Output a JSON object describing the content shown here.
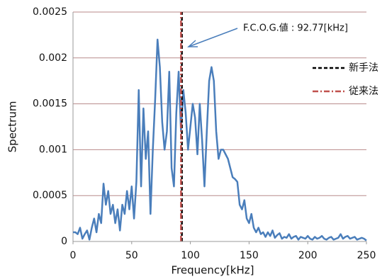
{
  "chart_data": {
    "type": "line",
    "xlabel": "Frequency[kHz]",
    "ylabel": "Spectrum",
    "annotation": "F.C.O.G.値 : 92.77[kHz]",
    "x": [
      0,
      2,
      4,
      6,
      8,
      10,
      12,
      14,
      16,
      18,
      20,
      22,
      24,
      26,
      28,
      30,
      32,
      34,
      36,
      38,
      40,
      42,
      44,
      46,
      48,
      50,
      52,
      54,
      56,
      58,
      60,
      62,
      64,
      66,
      68,
      70,
      72,
      74,
      76,
      78,
      80,
      82,
      84,
      86,
      88,
      90,
      92,
      94,
      96,
      98,
      100,
      102,
      104,
      106,
      108,
      110,
      112,
      114,
      116,
      118,
      120,
      122,
      124,
      126,
      128,
      130,
      132,
      134,
      136,
      138,
      140,
      142,
      144,
      146,
      148,
      150,
      152,
      154,
      156,
      158,
      160,
      162,
      164,
      166,
      168,
      170,
      172,
      174,
      176,
      178,
      180,
      182,
      184,
      186,
      188,
      190,
      192,
      194,
      196,
      198,
      200,
      202,
      204,
      206,
      208,
      210,
      212,
      214,
      216,
      218,
      220,
      222,
      224,
      226,
      228,
      230,
      232,
      234,
      236,
      238,
      240,
      242,
      244,
      246,
      248,
      250
    ],
    "series": [
      {
        "color": "#4a7ebb",
        "values": [
          0.0001,
          0.0001,
          8e-05,
          0.00015,
          3e-05,
          8e-05,
          0.00012,
          2e-05,
          0.00015,
          0.00025,
          0.0001,
          0.0003,
          0.0002,
          0.00063,
          0.0004,
          0.00055,
          0.0003,
          0.0004,
          0.0002,
          0.00035,
          0.00012,
          0.0004,
          0.0003,
          0.00055,
          0.00035,
          0.0006,
          0.00025,
          0.00065,
          0.00165,
          0.0006,
          0.00145,
          0.0009,
          0.0012,
          0.0003,
          0.001,
          0.00155,
          0.0022,
          0.0019,
          0.0013,
          0.001,
          0.0012,
          0.00185,
          0.0008,
          0.0006,
          0.0014,
          0.00185,
          0.0012,
          0.00165,
          0.0014,
          0.001,
          0.00125,
          0.0015,
          0.00135,
          0.00095,
          0.0015,
          0.0011,
          0.0006,
          0.0012,
          0.00175,
          0.0019,
          0.00175,
          0.0012,
          0.0009,
          0.001,
          0.001,
          0.00095,
          0.0009,
          0.0008,
          0.0007,
          0.00068,
          0.00065,
          0.0004,
          0.00035,
          0.00045,
          0.00025,
          0.0002,
          0.0003,
          0.00015,
          0.0001,
          0.00015,
          8e-05,
          0.0001,
          5e-05,
          0.0001,
          6e-05,
          0.00012,
          4e-05,
          7e-05,
          9e-05,
          3e-05,
          5e-05,
          4e-05,
          8e-05,
          3e-05,
          5e-05,
          6e-05,
          2e-05,
          5e-05,
          4e-05,
          3e-05,
          6e-05,
          3e-05,
          2e-05,
          5e-05,
          3e-05,
          4e-05,
          6e-05,
          3e-05,
          2e-05,
          4e-05,
          5e-05,
          2e-05,
          3e-05,
          4e-05,
          8e-05,
          3e-05,
          5e-05,
          6e-05,
          3e-05,
          4e-05,
          5e-05,
          2e-05,
          3e-05,
          4e-05,
          3e-05,
          1e-05
        ]
      }
    ],
    "vlines": [
      {
        "name": "新手法",
        "color": "#000000",
        "x": 92.77,
        "style": "dashed"
      },
      {
        "name": "従来法",
        "color": "#c0504d",
        "x": 92,
        "style": "dashdot"
      }
    ],
    "xlim": [
      0,
      250
    ],
    "xticks": [
      0,
      50,
      100,
      150,
      200,
      250
    ],
    "ylim": [
      0,
      0.0025
    ],
    "yticks": [
      0,
      0.0005,
      0.001,
      0.0015,
      0.002,
      0.0025
    ],
    "grid": true,
    "grid_color": "#b88a8a"
  }
}
